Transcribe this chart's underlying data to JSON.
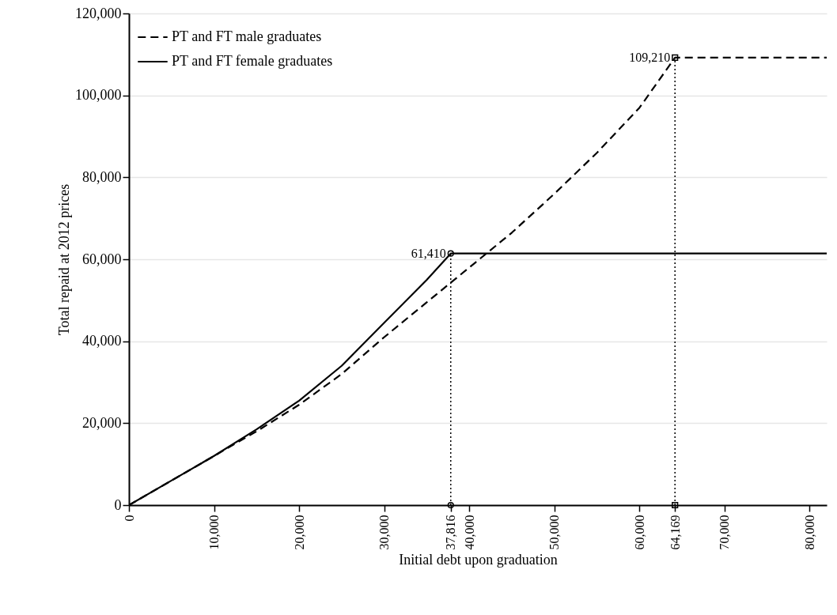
{
  "chart_data": {
    "type": "line",
    "xlabel": "Initial debt upon graduation",
    "ylabel": "Total repaid at 2012 prices",
    "xlim": [
      0,
      82000
    ],
    "ylim": [
      0,
      120000
    ],
    "xticks": [
      0,
      {
        "value": 10000,
        "label": "10,000"
      },
      {
        "value": 20000,
        "label": "20,000"
      },
      {
        "value": 30000,
        "label": "30,000"
      },
      {
        "value": 37816,
        "label": "37,816"
      },
      {
        "value": 40000,
        "label": "40,000"
      },
      {
        "value": 50000,
        "label": "50,000"
      },
      {
        "value": 60000,
        "label": "60,000"
      },
      {
        "value": 64169,
        "label": "64,169"
      },
      {
        "value": 70000,
        "label": "70,000"
      },
      {
        "value": 80000,
        "label": "80,000"
      }
    ],
    "yticks": [
      0,
      {
        "value": 20000,
        "label": "20,000"
      },
      {
        "value": 40000,
        "label": "40,000"
      },
      {
        "value": 60000,
        "label": "60,000"
      },
      {
        "value": 80000,
        "label": "80,000"
      },
      {
        "value": 100000,
        "label": "100,000"
      },
      {
        "value": 120000,
        "label": "120,000"
      }
    ],
    "grid": "y",
    "legend": "top left",
    "series": [
      {
        "name": "PT and FT male graduates",
        "color": "#000000",
        "line_style": "dashed",
        "marker": "none",
        "x": [
          0,
          5000,
          10000,
          15000,
          20000,
          25000,
          30000,
          35000,
          40000,
          45000,
          50000,
          55000,
          60000,
          64169,
          82000
        ],
        "values": [
          0,
          6000,
          12000,
          18000,
          24500,
          32000,
          41000,
          49500,
          58000,
          66500,
          76000,
          86000,
          97000,
          109210,
          109210
        ]
      },
      {
        "name": "PT and FT female graduates",
        "color": "#000000",
        "line_style": "solid",
        "marker": "none",
        "x": [
          0,
          5000,
          10000,
          15000,
          20000,
          25000,
          30000,
          35000,
          37816,
          82000
        ],
        "values": [
          0,
          6000,
          12000,
          18500,
          25500,
          34000,
          44500,
          55000,
          61410,
          61410
        ]
      },
      {
        "color": "#000000",
        "line_style": "dotted",
        "marker": "circle",
        "x": [
          37816,
          37816
        ],
        "values": [
          0,
          61410
        ]
      },
      {
        "color": "#000000",
        "line_style": "dotted",
        "marker": "square",
        "x": [
          64169,
          64169
        ],
        "values": [
          0,
          109210
        ]
      }
    ],
    "annotations": [
      {
        "text": "61,410",
        "x": 37816,
        "y": 61410
      },
      {
        "text": "109,210",
        "x": 64169,
        "y": 109210
      }
    ]
  }
}
